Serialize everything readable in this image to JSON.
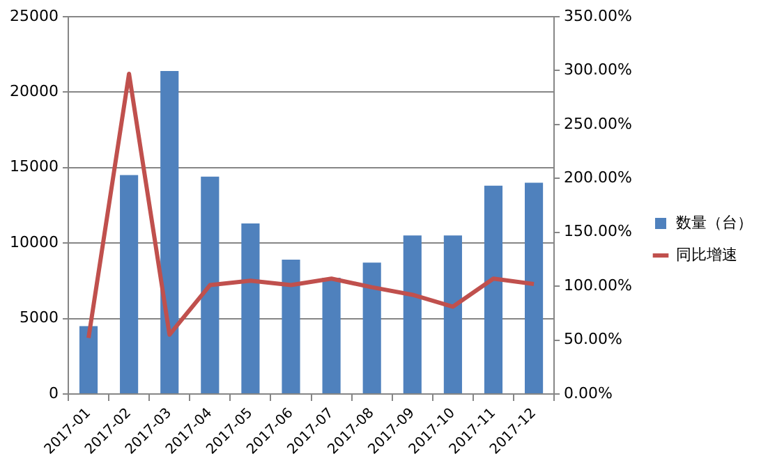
{
  "chart_data": {
    "type": "bar",
    "categories": [
      "2017-01",
      "2017-02",
      "2017-03",
      "2017-04",
      "2017-05",
      "2017-06",
      "2017-07",
      "2017-08",
      "2017-09",
      "2017-10",
      "2017-11",
      "2017-12"
    ],
    "series": [
      {
        "name": "数量（台）",
        "color": "#4f81bd",
        "values": [
          4500,
          14500,
          21400,
          14400,
          11300,
          8900,
          7700,
          8700,
          10500,
          10500,
          13800,
          14000
        ]
      },
      {
        "name": "同比增速",
        "type": "line",
        "axis": "y2",
        "color": "#c0504d",
        "values": [
          52,
          297,
          55,
          101,
          105,
          101,
          107,
          99,
          92,
          81,
          107,
          102
        ]
      }
    ],
    "ylim": [
      0,
      25000
    ],
    "yticks": [
      0,
      5000,
      10000,
      15000,
      20000,
      25000
    ],
    "y2lim": [
      0,
      350
    ],
    "y2ticks": [
      {
        "value": 0,
        "label": "0.00%"
      },
      {
        "value": 50,
        "label": "50.00%"
      },
      {
        "value": 100,
        "label": "100.00%"
      },
      {
        "value": 150,
        "label": "150.00%"
      },
      {
        "value": 200,
        "label": "200.00%"
      },
      {
        "value": 250,
        "label": "250.00%"
      },
      {
        "value": 300,
        "label": "300.00%"
      },
      {
        "value": 350,
        "label": "350.00%"
      }
    ],
    "grid": "y",
    "legend": "right",
    "marker": "none",
    "line_style": "solid"
  }
}
